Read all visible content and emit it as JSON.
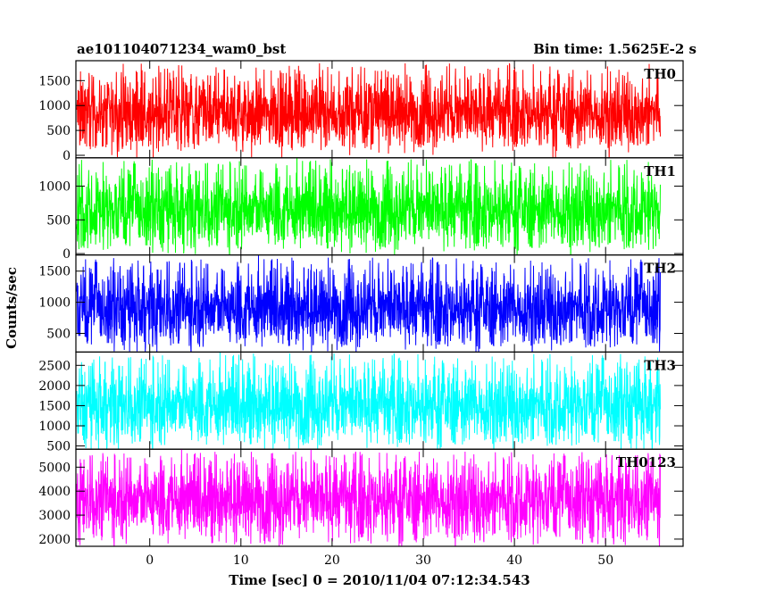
{
  "chart_data": {
    "type": "line",
    "title": "ae101104071234_wam0_bst",
    "bin_time_label": "Bin time: 1.5625E-2 s",
    "xlabel": "Time [sec] 0 = 2010/11/04 07:12:34.543",
    "ylabel": "Counts/sec",
    "xlim": [
      -8.1,
      58.5
    ],
    "x_data_range": [
      -8.0,
      56.0
    ],
    "xticks": [
      0,
      10,
      20,
      30,
      40,
      50
    ],
    "xtick_labels": [
      "0",
      "10",
      "20",
      "30",
      "40",
      "50"
    ],
    "grid": false,
    "legend": "none",
    "panels": [
      {
        "name": "TH0",
        "color": "#ff0000",
        "ylim": [
          -50,
          1900
        ],
        "yticks": [
          0,
          500,
          1000,
          1500
        ],
        "ytick_labels": [
          "0",
          "500",
          "1000",
          "1500"
        ],
        "mean": 850,
        "low": 150,
        "high": 1850
      },
      {
        "name": "TH1",
        "color": "#00ff00",
        "ylim": [
          -20,
          1420
        ],
        "yticks": [
          0,
          500,
          1000
        ],
        "ytick_labels": [
          "0",
          "500",
          "1000"
        ],
        "mean": 650,
        "low": 50,
        "high": 1400
      },
      {
        "name": "TH2",
        "color": "#0000ff",
        "ylim": [
          200,
          1760
        ],
        "yticks": [
          500,
          1000,
          1500
        ],
        "ytick_labels": [
          "500",
          "1000",
          "1500"
        ],
        "mean": 900,
        "low": 270,
        "high": 1720
      },
      {
        "name": "TH3",
        "color": "#00ffff",
        "ylim": [
          420,
          2830
        ],
        "yticks": [
          500,
          1000,
          1500,
          2000,
          2500
        ],
        "ytick_labels": [
          "500",
          "1000",
          "1500",
          "2000",
          "2500"
        ],
        "mean": 1500,
        "low": 500,
        "high": 2800
      },
      {
        "name": "TH0123",
        "color": "#ff00ff",
        "ylim": [
          1700,
          5750
        ],
        "yticks": [
          2000,
          3000,
          4000,
          5000
        ],
        "ytick_labels": [
          "2000",
          "3000",
          "4000",
          "5000"
        ],
        "mean": 3650,
        "low": 1750,
        "high": 5650
      }
    ]
  }
}
